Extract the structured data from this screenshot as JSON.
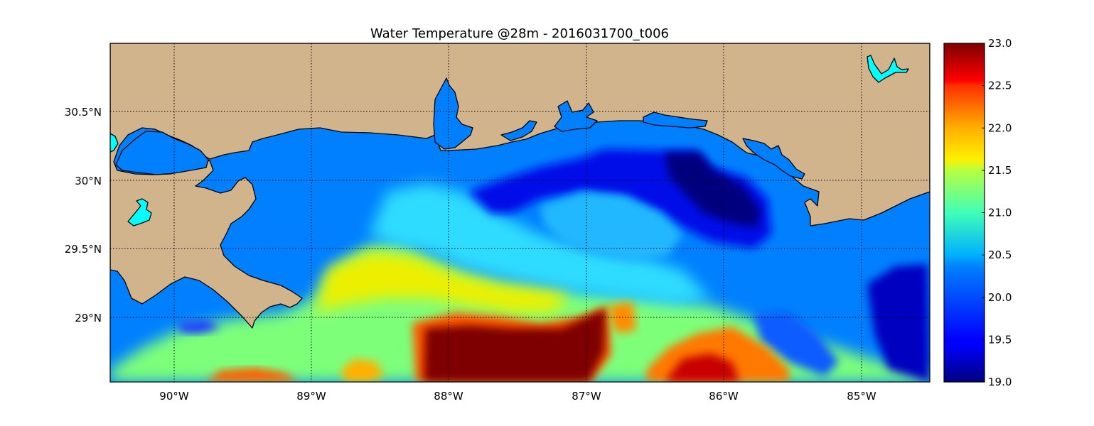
{
  "chart_data": {
    "type": "heatmap",
    "title": "Water Temperature @28m - 2016031700_t006",
    "xlabel": "",
    "ylabel": "",
    "x_tick_labels": [
      "90°W",
      "89°W",
      "88°W",
      "87°W",
      "86°W",
      "85°W"
    ],
    "x_tick_values": [
      -90,
      -89,
      -88,
      -87,
      -86,
      -85
    ],
    "y_tick_labels": [
      "30.5°N",
      "30°N",
      "29.5°N",
      "29°N"
    ],
    "y_tick_values": [
      30.5,
      30.0,
      29.5,
      29.0
    ],
    "xlim": [
      -90.47,
      -84.5
    ],
    "ylim": [
      28.54,
      31.0
    ],
    "grid": true,
    "colorbar": {
      "colormap": "jet",
      "range": [
        19.0,
        23.0
      ],
      "tick_labels": [
        "23.0",
        "22.5",
        "22.0",
        "21.5",
        "21.0",
        "20.5",
        "20.0",
        "19.5",
        "19.0"
      ],
      "tick_values": [
        23.0,
        22.5,
        22.0,
        21.5,
        21.0,
        20.5,
        20.0,
        19.5,
        19.0
      ]
    },
    "land_color": "#d2b48c",
    "fill_value_color": "#0080ff",
    "lake_color": "#00ffff",
    "value_regions": [
      {
        "lon": [
          -88.2,
          -87.0
        ],
        "lat": [
          28.54,
          28.95
        ],
        "value": 23.0
      },
      {
        "lon": [
          -86.6,
          -85.8
        ],
        "lat": [
          28.54,
          28.85
        ],
        "value": 22.5
      },
      {
        "lon": [
          -89.6,
          -88.4
        ],
        "lat": [
          28.95,
          29.45
        ],
        "value": 21.3
      },
      {
        "lon": [
          -86.9,
          -85.6
        ],
        "lat": [
          29.9,
          30.2
        ],
        "value": 19.1
      },
      {
        "lon": [
          -88.4,
          -87.5
        ],
        "lat": [
          29.5,
          29.9
        ],
        "value": 20.4
      },
      {
        "lon": [
          -85.0,
          -84.5
        ],
        "lat": [
          29.0,
          29.45
        ],
        "value": 19.3
      }
    ]
  }
}
